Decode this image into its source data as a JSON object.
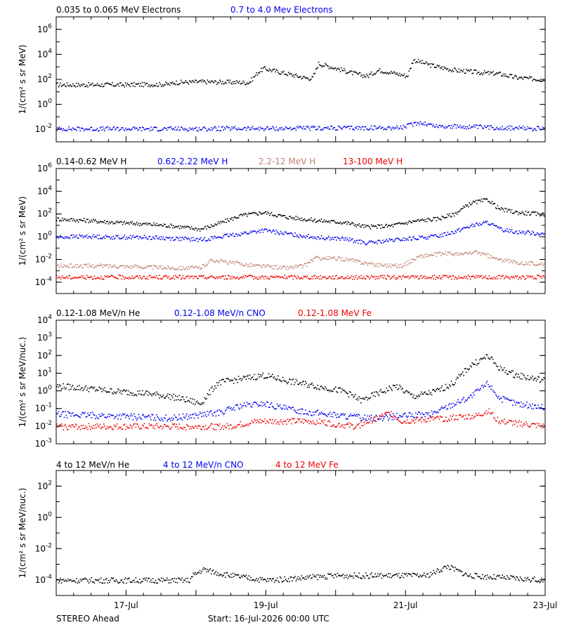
{
  "footer": {
    "left": "STEREO Ahead",
    "start": "Start: 16-Jul-2026 00:00 UTC"
  },
  "colors": {
    "black": "#000000",
    "blue": "#0000ee",
    "tan": "#c08070",
    "red": "#ee0000"
  },
  "chart_data": [
    {
      "type": "scatter",
      "legend": [
        {
          "label": "0.035 to 0.065 MeV Electrons",
          "color": "#000000"
        },
        {
          "label": "0.7 to 4.0 Mev Electrons",
          "color": "#0000ee"
        }
      ],
      "ylabel": "1/(cm² s sr MeV)",
      "yscale": "log",
      "ylim_exp": [
        -3,
        7
      ],
      "ytick_exps": [
        -2,
        0,
        2,
        4,
        6
      ],
      "xlim_days": [
        0,
        7
      ],
      "series": [
        {
          "color": "#000000",
          "points": [
            [
              0,
              40
            ],
            [
              1.2,
              40
            ],
            [
              2.0,
              45
            ],
            [
              2.0,
              60
            ],
            [
              2.5,
              70
            ],
            [
              3.0,
              65
            ],
            [
              3.35,
              60
            ],
            [
              3.5,
              400
            ],
            [
              3.6,
              800
            ],
            [
              3.9,
              400
            ],
            [
              4.3,
              150
            ],
            [
              4.45,
              130
            ],
            [
              4.55,
              2000
            ],
            [
              4.8,
              1000
            ],
            [
              5.2,
              300
            ],
            [
              5.4,
              200
            ],
            [
              5.6,
              600
            ],
            [
              5.8,
              400
            ],
            [
              6.1,
              200
            ],
            [
              6.2,
              4000
            ],
            [
              6.5,
              1500
            ],
            [
              6.9,
              600
            ],
            [
              7.3,
              400
            ],
            [
              7.7,
              300
            ],
            [
              8.0,
              150
            ],
            [
              8.5,
              100
            ]
          ]
        },
        {
          "color": "#0000ee",
          "points": [
            [
              0,
              0.012
            ],
            [
              2,
              0.012
            ],
            [
              4,
              0.013
            ],
            [
              6,
              0.015
            ],
            [
              6.3,
              0.04
            ],
            [
              6.6,
              0.02
            ],
            [
              8.5,
              0.012
            ]
          ]
        }
      ]
    },
    {
      "type": "scatter",
      "legend": [
        {
          "label": "0.14-0.62 MeV H",
          "color": "#000000"
        },
        {
          "label": "0.62-2.22 MeV H",
          "color": "#0000ee"
        },
        {
          "label": "2.2-12 MeV H",
          "color": "#c08070"
        },
        {
          "label": "13-100 MeV H",
          "color": "#ee0000"
        }
      ],
      "ylabel": "1/(cm² s sr MeV)",
      "yscale": "log",
      "ylim_exp": [
        -5,
        6
      ],
      "ytick_exps": [
        -4,
        -2,
        0,
        2,
        4,
        6
      ],
      "xlim_days": [
        0,
        7
      ],
      "series": [
        {
          "color": "#000000",
          "points": [
            [
              0,
              40
            ],
            [
              0.5,
              30
            ],
            [
              1,
              20
            ],
            [
              1.5,
              15
            ],
            [
              2,
              10
            ],
            [
              2.5,
              5
            ],
            [
              2.8,
              15
            ],
            [
              3.2,
              80
            ],
            [
              3.6,
              150
            ],
            [
              4,
              60
            ],
            [
              4.5,
              30
            ],
            [
              5,
              20
            ],
            [
              5.4,
              8
            ],
            [
              5.8,
              10
            ],
            [
              6.2,
              25
            ],
            [
              6.6,
              40
            ],
            [
              6.9,
              100
            ],
            [
              7.2,
              1000
            ],
            [
              7.5,
              2000
            ],
            [
              7.7,
              300
            ],
            [
              8,
              150
            ],
            [
              8.5,
              100
            ]
          ]
        },
        {
          "color": "#0000ee",
          "points": [
            [
              0,
              1
            ],
            [
              0.5,
              1.2
            ],
            [
              1,
              1
            ],
            [
              1.5,
              1
            ],
            [
              2,
              0.8
            ],
            [
              2.5,
              0.6
            ],
            [
              2.8,
              1
            ],
            [
              3.2,
              2
            ],
            [
              3.6,
              4
            ],
            [
              4,
              2
            ],
            [
              4.5,
              1
            ],
            [
              5,
              0.7
            ],
            [
              5.4,
              0.3
            ],
            [
              5.8,
              0.5
            ],
            [
              6.2,
              0.8
            ],
            [
              6.6,
              1.2
            ],
            [
              6.9,
              3
            ],
            [
              7.2,
              10
            ],
            [
              7.5,
              20
            ],
            [
              7.7,
              5
            ],
            [
              8,
              3
            ],
            [
              8.5,
              2
            ]
          ]
        },
        {
          "color": "#c08070",
          "points": [
            [
              0,
              0.003
            ],
            [
              1,
              0.003
            ],
            [
              2,
              0.002
            ],
            [
              2.5,
              0.002
            ],
            [
              2.7,
              0.01
            ],
            [
              3,
              0.006
            ],
            [
              3.5,
              0.003
            ],
            [
              4,
              0.002
            ],
            [
              4.3,
              0.003
            ],
            [
              4.5,
              0.015
            ],
            [
              5,
              0.012
            ],
            [
              5.5,
              0.004
            ],
            [
              6.0,
              0.003
            ],
            [
              6.3,
              0.02
            ],
            [
              6.8,
              0.04
            ],
            [
              7.0,
              0.03
            ],
            [
              7.3,
              0.05
            ],
            [
              7.7,
              0.01
            ],
            [
              8,
              0.006
            ],
            [
              8.5,
              0.004
            ]
          ]
        },
        {
          "color": "#ee0000",
          "points": [
            [
              0,
              0.0003
            ],
            [
              8.5,
              0.0003
            ]
          ]
        }
      ]
    },
    {
      "type": "scatter",
      "legend": [
        {
          "label": "0.12-1.08 MeV/n He",
          "color": "#000000"
        },
        {
          "label": "0.12-1.08 MeV/n CNO",
          "color": "#0000ee"
        },
        {
          "label": "0.12-1.08 MeV Fe",
          "color": "#ee0000"
        }
      ],
      "ylabel": "1/(cm² s sr MeV/nuc.)",
      "yscale": "log",
      "ylim_exp": [
        -3,
        4
      ],
      "ytick_exps": [
        -3,
        -2,
        -1,
        0,
        1,
        2,
        3,
        4
      ],
      "xlim_days": [
        0,
        7
      ],
      "series": [
        {
          "color": "#000000",
          "points": [
            [
              0,
              2
            ],
            [
              0.5,
              1.5
            ],
            [
              1,
              1
            ],
            [
              1.5,
              0.8
            ],
            [
              2,
              0.5
            ],
            [
              2.3,
              0.3
            ],
            [
              2.5,
              0.2
            ],
            [
              2.8,
              3
            ],
            [
              3.2,
              5
            ],
            [
              3.6,
              8
            ],
            [
              4,
              4
            ],
            [
              4.5,
              2
            ],
            [
              5,
              1
            ],
            [
              5.3,
              0.3
            ],
            [
              5.6,
              0.8
            ],
            [
              5.9,
              2
            ],
            [
              6.2,
              0.5
            ],
            [
              6.6,
              1
            ],
            [
              6.9,
              3
            ],
            [
              7.2,
              30
            ],
            [
              7.5,
              100
            ],
            [
              7.7,
              20
            ],
            [
              8,
              8
            ],
            [
              8.5,
              4
            ]
          ]
        },
        {
          "color": "#0000ee",
          "points": [
            [
              0,
              0.05
            ],
            [
              1,
              0.04
            ],
            [
              2,
              0.03
            ],
            [
              2.8,
              0.06
            ],
            [
              3.2,
              0.15
            ],
            [
              3.6,
              0.2
            ],
            [
              4,
              0.1
            ],
            [
              4.5,
              0.06
            ],
            [
              5,
              0.04
            ],
            [
              5.5,
              0.03
            ],
            [
              6,
              0.04
            ],
            [
              6.5,
              0.05
            ],
            [
              6.9,
              0.2
            ],
            [
              7.2,
              0.5
            ],
            [
              7.5,
              3
            ],
            [
              7.7,
              0.4
            ],
            [
              8,
              0.2
            ],
            [
              8.5,
              0.12
            ]
          ]
        },
        {
          "color": "#ee0000",
          "points": [
            [
              0,
              0.01
            ],
            [
              3,
              0.01
            ],
            [
              3.5,
              0.02
            ],
            [
              4.5,
              0.02
            ],
            [
              5.2,
              0.01
            ],
            [
              5.8,
              0.06
            ],
            [
              6,
              0.02
            ],
            [
              7.3,
              0.04
            ],
            [
              7.5,
              0.08
            ],
            [
              7.7,
              0.02
            ],
            [
              8.5,
              0.01
            ]
          ]
        }
      ]
    },
    {
      "type": "scatter",
      "legend": [
        {
          "label": "4 to 12 MeV/n He",
          "color": "#000000"
        },
        {
          "label": "4 to 12 MeV/n CNO",
          "color": "#0000ee"
        },
        {
          "label": "4 to 12 MeV Fe",
          "color": "#ee0000"
        }
      ],
      "ylabel": "1/(cm² s sr MeV/nuc.)",
      "yscale": "log",
      "ylim_exp": [
        -5,
        3
      ],
      "ytick_exps": [
        -4,
        -2,
        0,
        2
      ],
      "xlim_days": [
        0,
        7
      ],
      "x_tick_labels": [
        {
          "day": 1,
          "label": "17-Jul"
        },
        {
          "day": 3,
          "label": "19-Jul"
        },
        {
          "day": 5,
          "label": "21-Jul"
        },
        {
          "day": 7,
          "label": "23-Jul"
        }
      ],
      "series": [
        {
          "color": "#000000",
          "points": [
            [
              0,
              0.0001
            ],
            [
              1.9,
              0.0001
            ],
            [
              1.95,
              0.0002
            ],
            [
              2.1,
              0.0005
            ],
            [
              2.3,
              0.0003
            ],
            [
              2.5,
              0.0002
            ],
            [
              3,
              0.0001
            ],
            [
              4,
              0.0002
            ],
            [
              5.3,
              0.0002
            ],
            [
              5.6,
              0.0008
            ],
            [
              5.9,
              0.0002
            ],
            [
              7,
              0.0001
            ]
          ]
        }
      ]
    }
  ]
}
